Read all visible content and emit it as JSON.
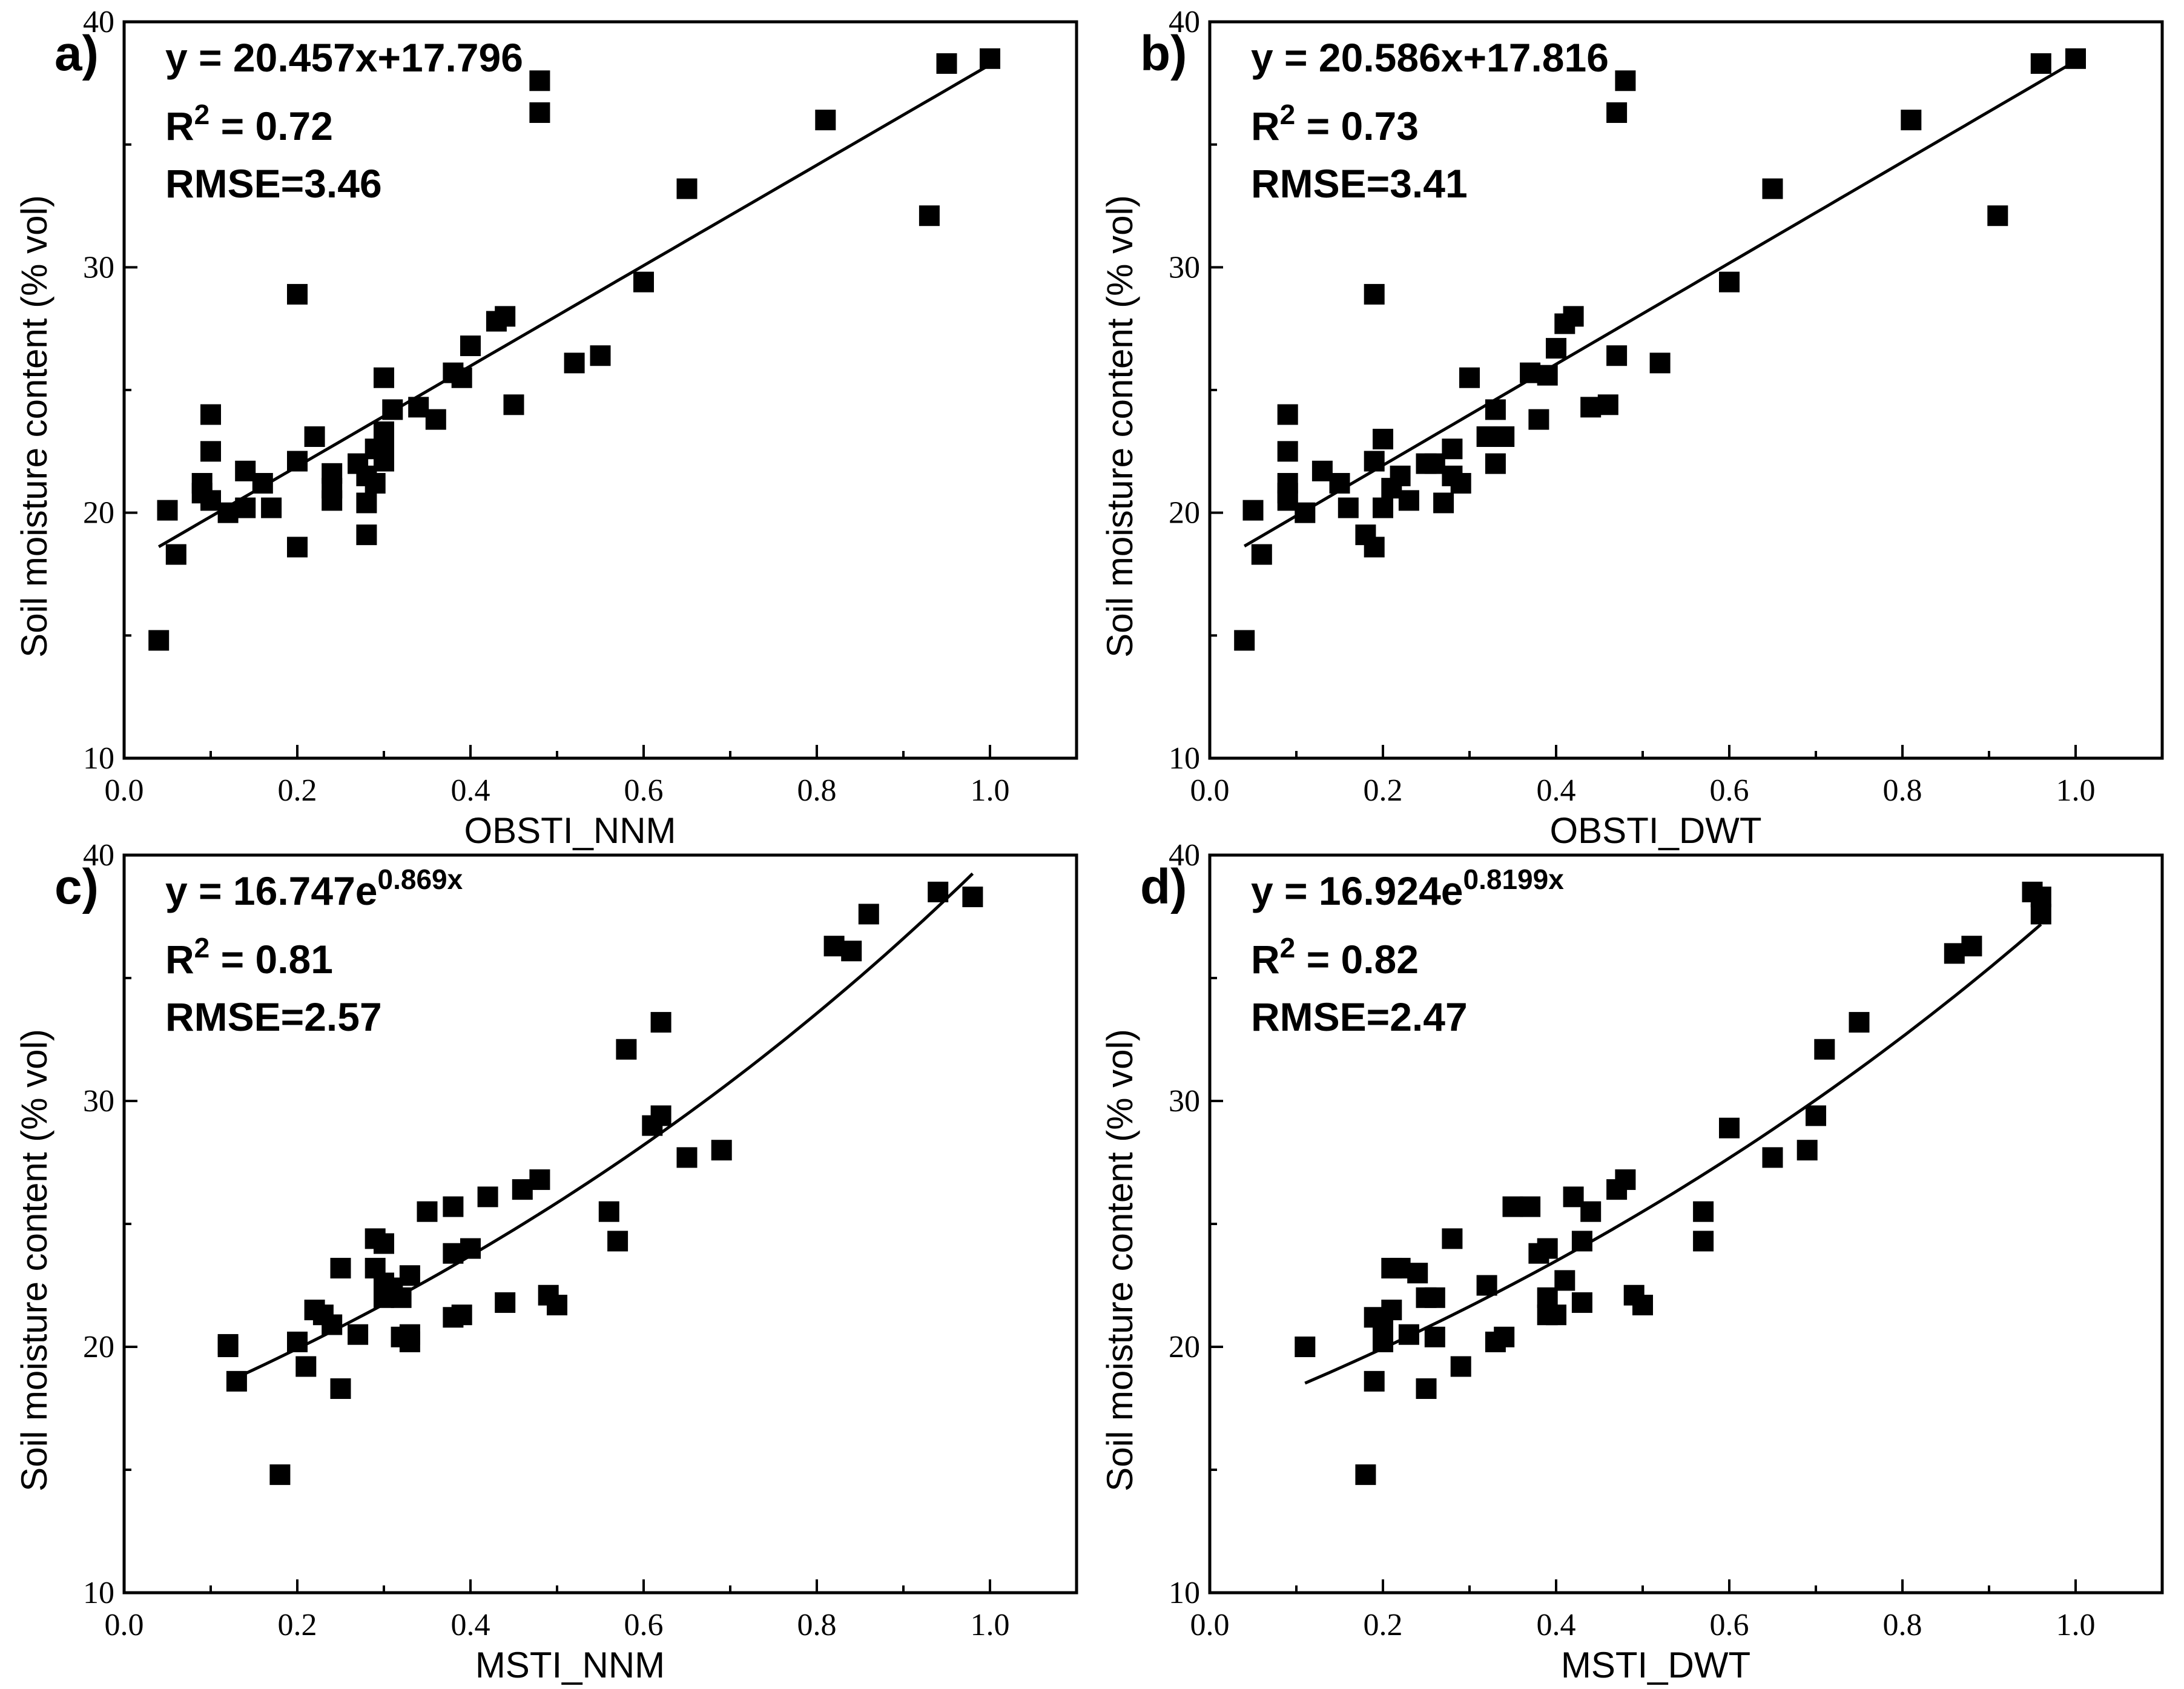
{
  "chart_data": [
    {
      "type": "scatter",
      "panel_label": "a)",
      "xlabel": "OBSTI_NNM",
      "ylabel": "Soil moisture content (% vol)",
      "xlim": [
        0.0,
        1.1
      ],
      "ylim": [
        10,
        40
      ],
      "xticks": [
        "0.0",
        "0.2",
        "0.4",
        "0.6",
        "0.8",
        "1.0"
      ],
      "yticks": [
        "10",
        "20",
        "30",
        "40"
      ],
      "equation_main": "y = 20.457x+17.796",
      "equation_sup": "",
      "r2_label": "R",
      "r2_sup": "2",
      "r2_value": " = 0.72",
      "rmse": "RMSE=3.46",
      "fit": {
        "kind": "linear",
        "a": 20.457,
        "b": 17.796,
        "x_start": 0.04,
        "x_end": 1.0
      },
      "points": [
        [
          0.04,
          14.8
        ],
        [
          0.05,
          20.1
        ],
        [
          0.06,
          18.3
        ],
        [
          0.1,
          24.0
        ],
        [
          0.1,
          22.5
        ],
        [
          0.09,
          21.2
        ],
        [
          0.09,
          20.8
        ],
        [
          0.1,
          20.5
        ],
        [
          0.12,
          20.0
        ],
        [
          0.14,
          20.2
        ],
        [
          0.14,
          21.7
        ],
        [
          0.16,
          21.2
        ],
        [
          0.17,
          20.2
        ],
        [
          0.2,
          28.9
        ],
        [
          0.2,
          22.1
        ],
        [
          0.2,
          18.6
        ],
        [
          0.22,
          23.1
        ],
        [
          0.24,
          21.6
        ],
        [
          0.24,
          21.0
        ],
        [
          0.24,
          20.5
        ],
        [
          0.27,
          22.0
        ],
        [
          0.28,
          21.5
        ],
        [
          0.28,
          20.4
        ],
        [
          0.28,
          19.1
        ],
        [
          0.29,
          22.6
        ],
        [
          0.29,
          21.2
        ],
        [
          0.3,
          22.9
        ],
        [
          0.3,
          22.1
        ],
        [
          0.3,
          23.3
        ],
        [
          0.3,
          25.5
        ],
        [
          0.31,
          24.2
        ],
        [
          0.34,
          24.3
        ],
        [
          0.36,
          23.8
        ],
        [
          0.38,
          25.7
        ],
        [
          0.39,
          25.5
        ],
        [
          0.4,
          26.8
        ],
        [
          0.43,
          27.8
        ],
        [
          0.44,
          28.0
        ],
        [
          0.45,
          24.4
        ],
        [
          0.48,
          37.6
        ],
        [
          0.48,
          36.3
        ],
        [
          0.52,
          26.1
        ],
        [
          0.55,
          26.4
        ],
        [
          0.6,
          29.4
        ],
        [
          0.65,
          33.2
        ],
        [
          0.81,
          36.0
        ],
        [
          0.93,
          32.1
        ],
        [
          0.95,
          38.3
        ],
        [
          1.0,
          38.5
        ]
      ]
    },
    {
      "type": "scatter",
      "panel_label": "b)",
      "xlabel": "OBSTI_DWT",
      "ylabel": "Soil moisture content (% vol)",
      "xlim": [
        0.0,
        1.1
      ],
      "ylim": [
        10,
        40
      ],
      "xticks": [
        "0.0",
        "0.2",
        "0.4",
        "0.6",
        "0.8",
        "1.0"
      ],
      "yticks": [
        "10",
        "20",
        "30",
        "40"
      ],
      "equation_main": "y = 20.586x+17.816",
      "equation_sup": "",
      "r2_label": "R",
      "r2_sup": "2",
      "r2_value": " = 0.73",
      "rmse": "RMSE=3.41",
      "fit": {
        "kind": "linear",
        "a": 20.586,
        "b": 17.816,
        "x_start": 0.04,
        "x_end": 1.0
      },
      "points": [
        [
          0.04,
          14.8
        ],
        [
          0.05,
          20.1
        ],
        [
          0.06,
          18.3
        ],
        [
          0.09,
          24.0
        ],
        [
          0.09,
          22.5
        ],
        [
          0.09,
          21.2
        ],
        [
          0.09,
          20.8
        ],
        [
          0.09,
          20.5
        ],
        [
          0.11,
          20.0
        ],
        [
          0.13,
          21.7
        ],
        [
          0.15,
          21.2
        ],
        [
          0.16,
          20.2
        ],
        [
          0.18,
          19.1
        ],
        [
          0.19,
          28.9
        ],
        [
          0.19,
          22.1
        ],
        [
          0.19,
          18.6
        ],
        [
          0.2,
          23.0
        ],
        [
          0.2,
          20.2
        ],
        [
          0.21,
          21.0
        ],
        [
          0.22,
          21.5
        ],
        [
          0.23,
          20.5
        ],
        [
          0.25,
          22.0
        ],
        [
          0.26,
          22.0
        ],
        [
          0.27,
          20.4
        ],
        [
          0.28,
          21.5
        ],
        [
          0.28,
          22.6
        ],
        [
          0.29,
          21.2
        ],
        [
          0.3,
          25.5
        ],
        [
          0.32,
          23.1
        ],
        [
          0.33,
          24.2
        ],
        [
          0.33,
          22.0
        ],
        [
          0.34,
          23.1
        ],
        [
          0.37,
          25.7
        ],
        [
          0.38,
          23.8
        ],
        [
          0.39,
          25.6
        ],
        [
          0.4,
          26.7
        ],
        [
          0.41,
          27.7
        ],
        [
          0.42,
          28.0
        ],
        [
          0.44,
          24.3
        ],
        [
          0.46,
          24.4
        ],
        [
          0.47,
          36.3
        ],
        [
          0.47,
          26.4
        ],
        [
          0.48,
          37.6
        ],
        [
          0.52,
          26.1
        ],
        [
          0.6,
          29.4
        ],
        [
          0.65,
          33.2
        ],
        [
          0.81,
          36.0
        ],
        [
          0.91,
          32.1
        ],
        [
          0.96,
          38.3
        ],
        [
          1.0,
          38.5
        ]
      ]
    },
    {
      "type": "scatter",
      "panel_label": "c)",
      "xlabel": "MSTI_NNM",
      "ylabel": "Soil moisture content (% vol)",
      "xlim": [
        0.0,
        1.1
      ],
      "ylim": [
        10,
        40
      ],
      "xticks": [
        "0.0",
        "0.2",
        "0.4",
        "0.6",
        "0.8",
        "1.0"
      ],
      "yticks": [
        "10",
        "20",
        "30",
        "40"
      ],
      "equation_main": "y = 16.747e",
      "equation_sup": "0.869x",
      "r2_label": "R",
      "r2_sup": "2",
      "r2_value": " = 0.81",
      "rmse": "RMSE=2.57",
      "fit": {
        "kind": "exp",
        "a": 16.747,
        "b": 0.869,
        "x_start": 0.12,
        "x_end": 0.98
      },
      "points": [
        [
          0.12,
          20.1
        ],
        [
          0.12,
          20.0
        ],
        [
          0.13,
          18.6
        ],
        [
          0.18,
          14.8
        ],
        [
          0.2,
          20.2
        ],
        [
          0.21,
          19.2
        ],
        [
          0.22,
          21.5
        ],
        [
          0.23,
          21.3
        ],
        [
          0.24,
          20.9
        ],
        [
          0.25,
          18.3
        ],
        [
          0.25,
          23.2
        ],
        [
          0.27,
          20.5
        ],
        [
          0.29,
          23.2
        ],
        [
          0.29,
          24.4
        ],
        [
          0.3,
          22.0
        ],
        [
          0.3,
          24.2
        ],
        [
          0.3,
          22.6
        ],
        [
          0.31,
          22.4
        ],
        [
          0.32,
          22.0
        ],
        [
          0.32,
          20.4
        ],
        [
          0.33,
          20.5
        ],
        [
          0.33,
          20.2
        ],
        [
          0.33,
          22.9
        ],
        [
          0.35,
          25.5
        ],
        [
          0.38,
          23.8
        ],
        [
          0.38,
          21.2
        ],
        [
          0.38,
          25.7
        ],
        [
          0.39,
          21.3
        ],
        [
          0.4,
          24.0
        ],
        [
          0.42,
          26.1
        ],
        [
          0.44,
          21.8
        ],
        [
          0.46,
          26.4
        ],
        [
          0.48,
          26.8
        ],
        [
          0.49,
          22.1
        ],
        [
          0.5,
          21.7
        ],
        [
          0.56,
          25.5
        ],
        [
          0.57,
          24.3
        ],
        [
          0.58,
          32.1
        ],
        [
          0.61,
          29.0
        ],
        [
          0.62,
          33.2
        ],
        [
          0.62,
          29.4
        ],
        [
          0.65,
          27.7
        ],
        [
          0.69,
          28.0
        ],
        [
          0.82,
          36.3
        ],
        [
          0.84,
          36.1
        ],
        [
          0.86,
          37.6
        ],
        [
          0.94,
          38.5
        ],
        [
          0.98,
          38.3
        ]
      ]
    },
    {
      "type": "scatter",
      "panel_label": "d)",
      "xlabel": "MSTI_DWT",
      "ylabel": "Soil moisture content (% vol)",
      "xlim": [
        0.0,
        1.1
      ],
      "ylim": [
        10,
        40
      ],
      "xticks": [
        "0.0",
        "0.2",
        "0.4",
        "0.6",
        "0.8",
        "1.0"
      ],
      "yticks": [
        "10",
        "20",
        "30",
        "40"
      ],
      "equation_main": "y = 16.924e",
      "equation_sup": "0.8199x",
      "r2_label": "R",
      "r2_sup": "2",
      "r2_value": " = 0.82",
      "rmse": "RMSE=2.47",
      "fit": {
        "kind": "exp",
        "a": 16.924,
        "b": 0.8199,
        "x_start": 0.11,
        "x_end": 0.96
      },
      "points": [
        [
          0.11,
          20.0
        ],
        [
          0.18,
          14.8
        ],
        [
          0.19,
          18.6
        ],
        [
          0.19,
          21.2
        ],
        [
          0.2,
          20.2
        ],
        [
          0.2,
          21.0
        ],
        [
          0.21,
          21.5
        ],
        [
          0.21,
          23.2
        ],
        [
          0.22,
          23.2
        ],
        [
          0.23,
          20.5
        ],
        [
          0.24,
          23.0
        ],
        [
          0.25,
          18.3
        ],
        [
          0.25,
          22.0
        ],
        [
          0.26,
          22.0
        ],
        [
          0.26,
          20.4
        ],
        [
          0.28,
          24.4
        ],
        [
          0.29,
          19.2
        ],
        [
          0.32,
          22.5
        ],
        [
          0.33,
          20.2
        ],
        [
          0.34,
          20.4
        ],
        [
          0.35,
          25.7
        ],
        [
          0.37,
          25.7
        ],
        [
          0.38,
          23.8
        ],
        [
          0.39,
          24.0
        ],
        [
          0.39,
          22.0
        ],
        [
          0.39,
          21.3
        ],
        [
          0.4,
          21.3
        ],
        [
          0.41,
          22.7
        ],
        [
          0.42,
          26.1
        ],
        [
          0.43,
          24.3
        ],
        [
          0.43,
          21.8
        ],
        [
          0.44,
          25.5
        ],
        [
          0.47,
          26.4
        ],
        [
          0.48,
          26.8
        ],
        [
          0.49,
          22.1
        ],
        [
          0.5,
          21.7
        ],
        [
          0.57,
          24.3
        ],
        [
          0.57,
          25.5
        ],
        [
          0.6,
          28.9
        ],
        [
          0.65,
          27.7
        ],
        [
          0.69,
          28.0
        ],
        [
          0.7,
          29.4
        ],
        [
          0.71,
          32.1
        ],
        [
          0.75,
          33.2
        ],
        [
          0.86,
          36.0
        ],
        [
          0.88,
          36.3
        ],
        [
          0.95,
          38.5
        ],
        [
          0.96,
          38.3
        ],
        [
          0.96,
          37.6
        ]
      ]
    }
  ]
}
